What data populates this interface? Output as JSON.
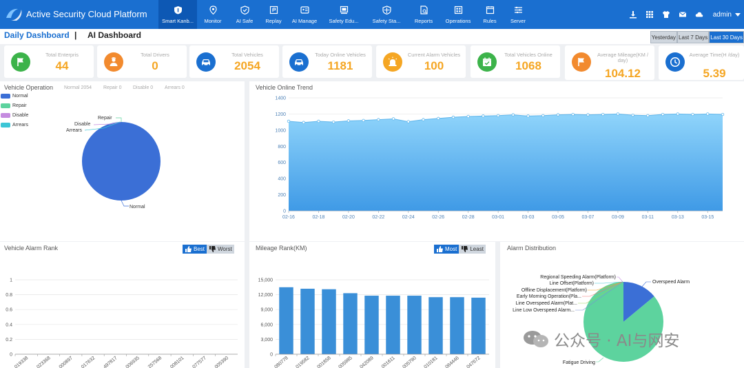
{
  "header": {
    "title": "Active Security Cloud Platform",
    "nav": [
      {
        "label": "Smart Kanb...",
        "icon": "shield-icon",
        "active": true
      },
      {
        "label": "Monitor",
        "icon": "location-pin-icon"
      },
      {
        "label": "AI Safe",
        "icon": "shield-check-icon"
      },
      {
        "label": "Replay",
        "icon": "replay-icon"
      },
      {
        "label": "AI Manage",
        "icon": "ai-manage-icon"
      },
      {
        "label": "Safety Edu...",
        "icon": "education-icon"
      },
      {
        "label": "Safety Sta...",
        "icon": "safety-stat-icon"
      },
      {
        "label": "Reports",
        "icon": "report-icon"
      },
      {
        "label": "Operations",
        "icon": "operations-icon"
      },
      {
        "label": "Rules",
        "icon": "rules-icon"
      },
      {
        "label": "Server",
        "icon": "server-icon"
      }
    ],
    "user": "admin"
  },
  "dashboard_tabs": {
    "daily": "Daily Dashboard",
    "separator": "|",
    "ai": "AI Dashboard"
  },
  "range_buttons": [
    "Yesterday",
    "Last 7 Days",
    "Last 30 Days"
  ],
  "stats": [
    {
      "label": "Total Enterpris",
      "value": "44",
      "color": "#3cb34a",
      "icon": "flag-icon"
    },
    {
      "label": "Total Drivers",
      "value": "0",
      "color": "#f28a2e",
      "icon": "driver-icon"
    },
    {
      "label": "Total Vehicles",
      "value": "2054",
      "color": "#1a6fd0",
      "icon": "car-icon"
    },
    {
      "label": "Today Online Vehicles",
      "value": "1181",
      "color": "#1a6fd0",
      "icon": "car-icon"
    },
    {
      "label": "Current Alarm Vehicles",
      "value": "100",
      "color": "#f5a623",
      "icon": "alarm-light-icon"
    },
    {
      "label": "Total Vehicles Online",
      "value": "1068",
      "color": "#3cb34a",
      "icon": "calendar-icon"
    },
    {
      "label": "Average Mileage(KM / day)",
      "value": "104.12",
      "color": "#f28a2e",
      "icon": "flag-icon"
    },
    {
      "label": "Average Time(H /day)",
      "value": "5.39",
      "color": "#1a6fd0",
      "icon": "clock-icon"
    }
  ],
  "vehicle_operation": {
    "title": "Vehicle Operation",
    "inline_legend": [
      "Normal 2054",
      "Repair 0",
      "Disable 0",
      "Arrears 0"
    ],
    "legend": [
      {
        "name": "Normal",
        "color": "#3b6fd6"
      },
      {
        "name": "Repair",
        "color": "#5dd39e"
      },
      {
        "name": "Disable",
        "color": "#c58be0"
      },
      {
        "name": "Arrears",
        "color": "#3cc6d6"
      }
    ],
    "labels": {
      "repair": "Repair",
      "disable": "Disable",
      "arrears": "Arrears",
      "normal": "Normal"
    }
  },
  "online_trend": {
    "title": "Vehicle Online Trend"
  },
  "alarm_rank": {
    "title": "Vehicle Alarm Rank",
    "best": "Best",
    "worst": "Worst"
  },
  "mileage_rank": {
    "title": "Mileage Rank(KM)",
    "most": "Most",
    "least": "Least"
  },
  "alarm_distribution": {
    "title": "Alarm Distribution"
  },
  "watermark": "公众号 · AI与网安",
  "chart_data": [
    {
      "type": "pie",
      "name": "vehicle-operation",
      "labels": [
        "Normal",
        "Repair",
        "Disable",
        "Arrears"
      ],
      "values": [
        2054,
        0,
        0,
        0
      ]
    },
    {
      "type": "area",
      "name": "vehicle-online-trend",
      "x": [
        "02-16",
        "02-17",
        "02-18",
        "02-19",
        "02-20",
        "02-21",
        "02-22",
        "02-23",
        "02-24",
        "02-25",
        "02-26",
        "02-27",
        "02-28",
        "02-29",
        "03-01",
        "03-02",
        "03-03",
        "03-04",
        "03-05",
        "03-06",
        "03-07",
        "03-08",
        "03-09",
        "03-10",
        "03-11",
        "03-12",
        "03-13",
        "03-14",
        "03-15",
        "03-16"
      ],
      "x_tick_labels": [
        "02-16",
        "02-18",
        "02-20",
        "02-22",
        "02-24",
        "02-26",
        "02-28",
        "03-01",
        "03-03",
        "03-05",
        "03-07",
        "03-09",
        "03-11",
        "03-13",
        "03-15"
      ],
      "values": [
        1110,
        1095,
        1110,
        1100,
        1115,
        1120,
        1130,
        1140,
        1105,
        1130,
        1145,
        1160,
        1170,
        1175,
        1180,
        1190,
        1175,
        1180,
        1190,
        1195,
        1190,
        1195,
        1200,
        1185,
        1180,
        1195,
        1200,
        1195,
        1200,
        1195
      ],
      "ylim": [
        0,
        1400
      ],
      "yticks": [
        0,
        200,
        400,
        600,
        800,
        1000,
        1200,
        1400
      ]
    },
    {
      "type": "bar",
      "name": "vehicle-alarm-rank",
      "categories": [
        "019338",
        "023368",
        "000897",
        "017632",
        "497817",
        "006935",
        "257568",
        "008101",
        "077577",
        "005390"
      ],
      "values": [
        0,
        0,
        0,
        0,
        0,
        0,
        0,
        0,
        0,
        0
      ],
      "ylim": [
        0,
        1
      ],
      "yticks": [
        "0",
        "0.2",
        "0.4",
        "0.6",
        "0.8",
        "1"
      ]
    },
    {
      "type": "bar",
      "name": "mileage-rank",
      "categories": [
        "080778",
        "019582",
        "001858",
        "005985",
        "042089",
        "001611",
        "005790",
        "010181",
        "064446",
        "047672"
      ],
      "values": [
        13500,
        13200,
        13100,
        12300,
        11800,
        11800,
        11800,
        11500,
        11500,
        11400
      ],
      "ylim": [
        0,
        15000
      ],
      "yticks": [
        "0",
        "3,000",
        "6,000",
        "9,000",
        "12,000",
        "15,000"
      ]
    },
    {
      "type": "pie",
      "name": "alarm-distribution",
      "labels": [
        "Overspeed Alarm",
        "Fatigue Driving",
        "Regional Speeding Alarm(Platform)",
        "Line Offset(Platform)",
        "Offline Displacement(Platform)",
        "Early Morning Operation(Pla...",
        "Line Overspeed Alarm(Plat...",
        "Line Low Overspeed Alarm..."
      ],
      "values": [
        14,
        86,
        0,
        0,
        0,
        0,
        0,
        0
      ],
      "colors": [
        "#3b6fd6",
        "#5dd39e",
        "#c58be0",
        "#3cc6d6",
        "#f5a623",
        "#f27373",
        "#9bd25a",
        "#7a8fd6"
      ]
    }
  ]
}
